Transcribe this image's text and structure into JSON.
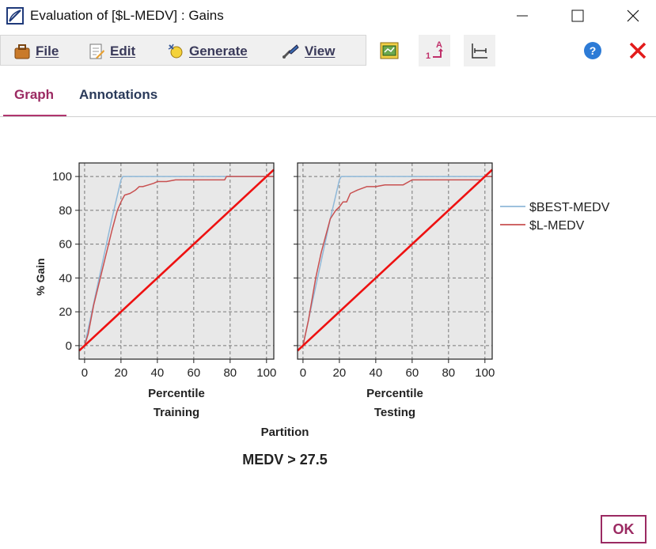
{
  "window": {
    "title": "Evaluation of [$L-MEDV] : Gains"
  },
  "menu": [
    {
      "label": "File",
      "icon": "briefcase-icon"
    },
    {
      "label": "Edit",
      "icon": "edit-icon"
    },
    {
      "label": "Generate",
      "icon": "generate-icon"
    },
    {
      "label": "View",
      "icon": "view-icon"
    }
  ],
  "tabs": [
    {
      "label": "Graph",
      "active": true
    },
    {
      "label": "Annotations",
      "active": false
    }
  ],
  "buttons": {
    "ok_label": "OK"
  },
  "colors": {
    "accent": "#9b2a62",
    "best": "#8fb8d8",
    "model": "#c85050",
    "baseline": "#ee1111",
    "plot_bg": "#e8e8e8"
  },
  "chart_data": {
    "type": "line",
    "title": "MEDV > 27.5",
    "ylabel": "% Gain",
    "xlabel_shared": "Partition",
    "xlim": [
      -3,
      104
    ],
    "ylim": [
      -8,
      108
    ],
    "xticks": [
      0,
      20,
      40,
      60,
      80,
      100
    ],
    "yticks": [
      0,
      20,
      40,
      60,
      80,
      100
    ],
    "grid": true,
    "legend": {
      "position": "right",
      "entries": [
        "$BEST-MEDV",
        "$L-MEDV"
      ]
    },
    "panels": [
      {
        "xlabel": "Percentile",
        "partition": "Training",
        "series": [
          {
            "name": "$BEST-MEDV",
            "x": [
              0,
              2,
              5,
              10,
              15,
              20,
              21,
              104
            ],
            "y": [
              0,
              10,
              25,
              50,
              75,
              98,
              100,
              100
            ]
          },
          {
            "name": "$L-MEDV",
            "x": [
              0,
              2,
              5,
              10,
              15,
              18,
              20,
              22,
              25,
              28,
              30,
              32,
              35,
              38,
              40,
              45,
              50,
              55,
              60,
              70,
              77,
              78,
              90,
              100,
              104
            ],
            "y": [
              0,
              7,
              24,
              46,
              68,
              80,
              85,
              89,
              90,
              92,
              94,
              94,
              95,
              96,
              97,
              97,
              98,
              98,
              98,
              98,
              98,
              100,
              100,
              100,
              100
            ]
          },
          {
            "name": "",
            "x": [
              -3,
              104
            ],
            "y": [
              -3,
              104
            ]
          }
        ]
      },
      {
        "xlabel": "Percentile",
        "partition": "Testing",
        "series": [
          {
            "name": "$BEST-MEDV",
            "x": [
              0,
              5,
              10,
              15,
              20,
              21,
              104
            ],
            "y": [
              0,
              25,
              50,
              75,
              98,
              100,
              100
            ]
          },
          {
            "name": "$L-MEDV",
            "x": [
              0,
              3,
              7,
              10,
              15,
              18,
              20,
              22,
              24,
              26,
              30,
              35,
              40,
              45,
              50,
              55,
              60,
              70,
              80,
              90,
              98,
              100,
              104
            ],
            "y": [
              0,
              15,
              40,
              55,
              75,
              80,
              82,
              85,
              85,
              90,
              92,
              94,
              94,
              95,
              95,
              95,
              98,
              98,
              98,
              98,
              98,
              100,
              100
            ]
          },
          {
            "name": "",
            "x": [
              -3,
              104
            ],
            "y": [
              -3,
              104
            ]
          }
        ]
      }
    ]
  }
}
